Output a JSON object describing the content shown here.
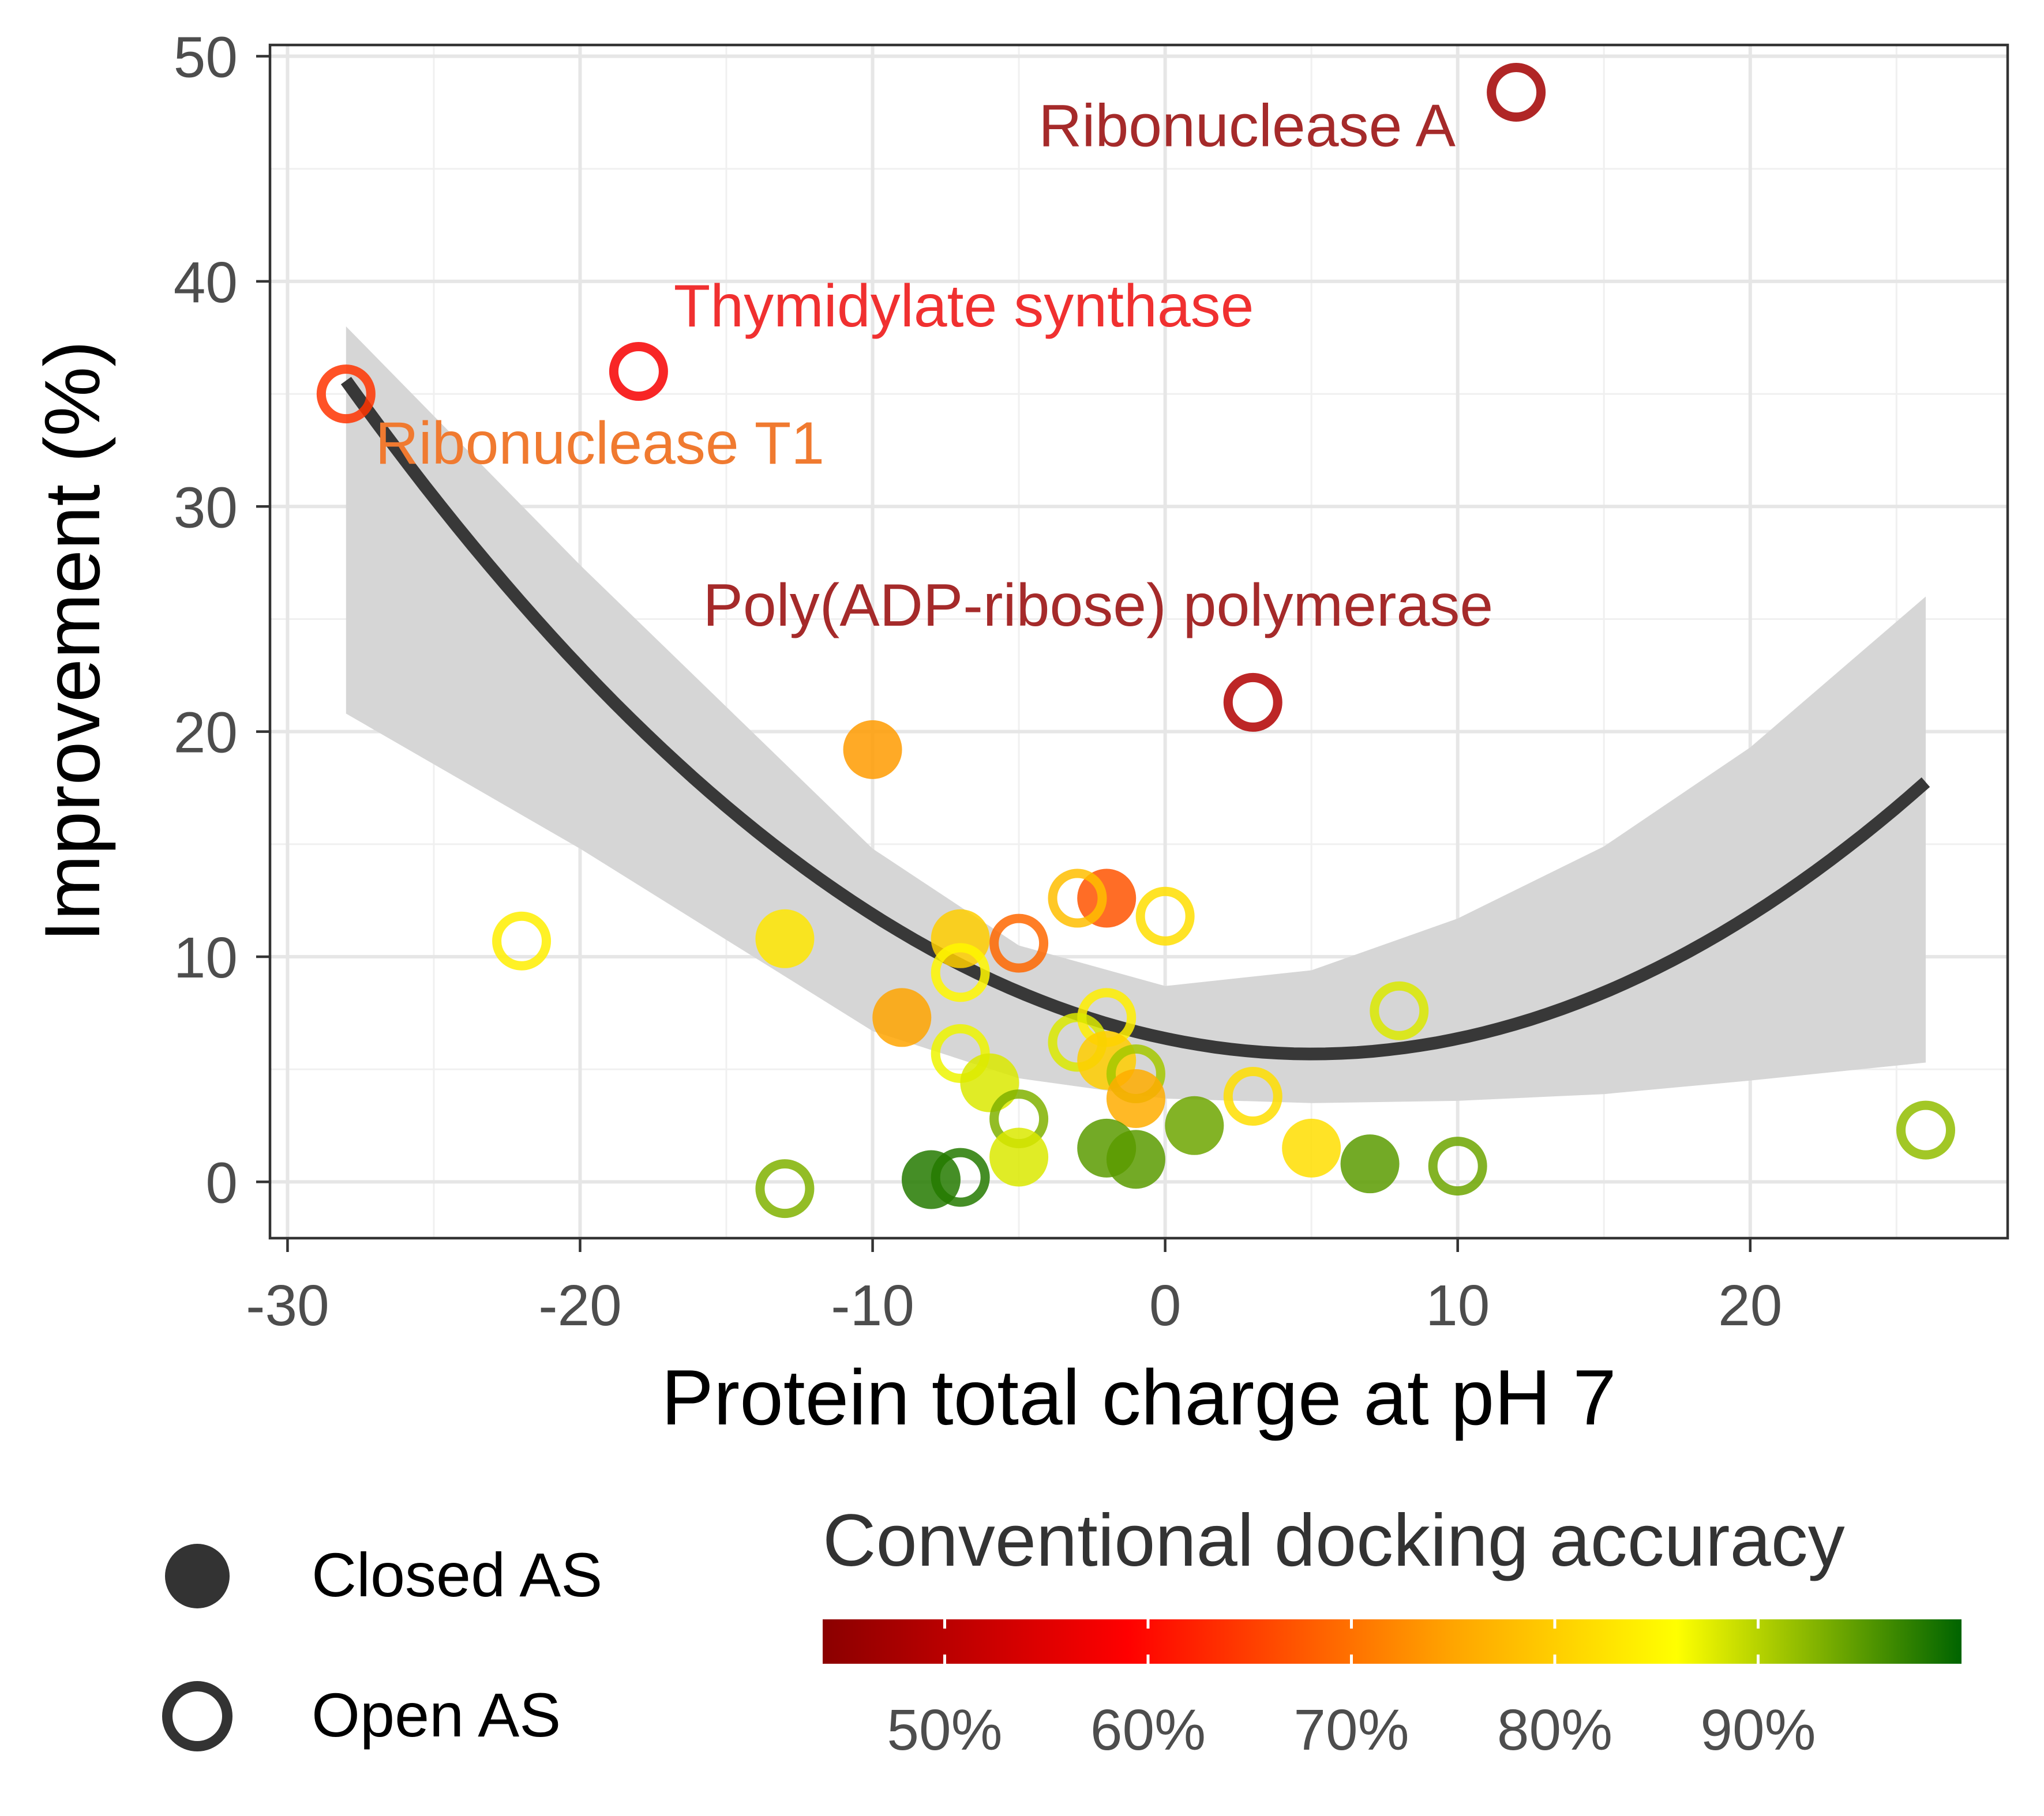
{
  "chart_data": {
    "type": "scatter",
    "xlabel": "Protein total charge at pH 7",
    "ylabel": "Improvement (%)",
    "xlim": [
      -30.6,
      28.8
    ],
    "ylim": [
      -2.5,
      50.5
    ],
    "xticks": [
      -30,
      -20,
      -10,
      0,
      10,
      20
    ],
    "yticks": [
      0,
      10,
      20,
      30,
      40,
      50
    ],
    "xtick_labels": [
      "-30",
      "-20",
      "-10",
      "0",
      "10",
      "20"
    ],
    "ytick_labels": [
      "0",
      "10",
      "20",
      "30",
      "40",
      "50"
    ],
    "grid": true,
    "points": [
      {
        "x": 12,
        "y": 48.4,
        "open": true,
        "accuracy": 47
      },
      {
        "x": -18,
        "y": 36.0,
        "open": true,
        "accuracy": 58
      },
      {
        "x": -28,
        "y": 35.0,
        "open": true,
        "accuracy": 64
      },
      {
        "x": 3,
        "y": 21.3,
        "open": true,
        "accuracy": 49
      },
      {
        "x": -10,
        "y": 19.2,
        "open": false,
        "accuracy": 74
      },
      {
        "x": -2,
        "y": 12.6,
        "open": false,
        "accuracy": 67
      },
      {
        "x": -3,
        "y": 12.6,
        "open": true,
        "accuracy": 78
      },
      {
        "x": 0,
        "y": 11.8,
        "open": true,
        "accuracy": 82
      },
      {
        "x": -22,
        "y": 10.7,
        "open": true,
        "accuracy": 84
      },
      {
        "x": -13,
        "y": 10.8,
        "open": false,
        "accuracy": 83
      },
      {
        "x": -7,
        "y": 10.8,
        "open": false,
        "accuracy": 80
      },
      {
        "x": -5,
        "y": 10.6,
        "open": true,
        "accuracy": 69
      },
      {
        "x": -7,
        "y": 9.3,
        "open": true,
        "accuracy": 85
      },
      {
        "x": -9,
        "y": 7.3,
        "open": false,
        "accuracy": 75
      },
      {
        "x": -2,
        "y": 7.3,
        "open": true,
        "accuracy": 84
      },
      {
        "x": 8,
        "y": 7.6,
        "open": true,
        "accuracy": 88
      },
      {
        "x": -3,
        "y": 6.2,
        "open": true,
        "accuracy": 88
      },
      {
        "x": -2,
        "y": 5.4,
        "open": false,
        "accuracy": 80
      },
      {
        "x": -7,
        "y": 5.7,
        "open": true,
        "accuracy": 87
      },
      {
        "x": -6,
        "y": 4.4,
        "open": false,
        "accuracy": 88
      },
      {
        "x": -1,
        "y": 4.8,
        "open": true,
        "accuracy": 91
      },
      {
        "x": -1,
        "y": 3.7,
        "open": false,
        "accuracy": 76
      },
      {
        "x": 3,
        "y": 3.8,
        "open": true,
        "accuracy": 82
      },
      {
        "x": -5,
        "y": 2.8,
        "open": true,
        "accuracy": 93
      },
      {
        "x": 1,
        "y": 2.5,
        "open": false,
        "accuracy": 94
      },
      {
        "x": 5,
        "y": 1.5,
        "open": false,
        "accuracy": 82
      },
      {
        "x": -5,
        "y": 1.1,
        "open": false,
        "accuracy": 88
      },
      {
        "x": -2,
        "y": 1.5,
        "open": false,
        "accuracy": 95
      },
      {
        "x": -1,
        "y": 1.0,
        "open": false,
        "accuracy": 95
      },
      {
        "x": 7,
        "y": 0.8,
        "open": false,
        "accuracy": 95
      },
      {
        "x": 10,
        "y": 0.7,
        "open": true,
        "accuracy": 94
      },
      {
        "x": 26,
        "y": 2.3,
        "open": true,
        "accuracy": 92
      },
      {
        "x": -13,
        "y": -0.3,
        "open": true,
        "accuracy": 93
      },
      {
        "x": -8,
        "y": 0.1,
        "open": false,
        "accuracy": 98
      },
      {
        "x": -7,
        "y": 0.2,
        "open": true,
        "accuracy": 98
      }
    ],
    "annotations": [
      {
        "text": "Ribonuclease A",
        "x": 2.8,
        "y": 46.0,
        "color": "#a52a2a",
        "anchor": "middle"
      },
      {
        "text": "Thymidylate synthase",
        "x": -16.8,
        "y": 38.0,
        "color": "#f03030",
        "anchor": "start"
      },
      {
        "text": "Ribonuclease T1",
        "x": -27.0,
        "y": 31.9,
        "color": "#f07a30",
        "anchor": "start"
      },
      {
        "text": "Poly(ADP-ribose) polymerase",
        "x": -15.8,
        "y": 24.7,
        "color": "#a52a2a",
        "anchor": "start"
      }
    ],
    "fit_curve": {
      "x_range": [
        -28,
        26
      ],
      "coefficients": [
        6.374,
        -0.2755,
        0.02743
      ],
      "band_upper": [
        [
          -28,
          38.0
        ],
        [
          -20,
          27.4
        ],
        [
          -10,
          14.8
        ],
        [
          -5,
          10.5
        ],
        [
          0,
          8.7
        ],
        [
          5,
          9.4
        ],
        [
          10,
          11.7
        ],
        [
          15,
          14.9
        ],
        [
          20,
          19.3
        ],
        [
          26,
          26.0
        ]
      ],
      "band_lower": [
        [
          -28,
          20.8
        ],
        [
          -20,
          14.8
        ],
        [
          -10,
          6.7
        ],
        [
          -5,
          4.6
        ],
        [
          0,
          3.7
        ],
        [
          5,
          3.5
        ],
        [
          10,
          3.6
        ],
        [
          15,
          3.9
        ],
        [
          20,
          4.5
        ],
        [
          26,
          5.3
        ]
      ],
      "line_color": "#383838",
      "band_color": "#d6d6d6"
    },
    "colorbar": {
      "title": "Conventional docking accuracy",
      "range": [
        44,
        100
      ],
      "stops": [
        {
          "value": 44,
          "color": "#8b0000"
        },
        {
          "value": 59,
          "color": "#ff0000"
        },
        {
          "value": 75,
          "color": "#ffa500"
        },
        {
          "value": 86,
          "color": "#ffff00"
        },
        {
          "value": 100,
          "color": "#006400"
        }
      ],
      "ticks": [
        50,
        60,
        70,
        80,
        90
      ],
      "tick_labels": [
        "50%",
        "60%",
        "70%",
        "80%",
        "90%"
      ]
    },
    "shape_legend": [
      {
        "label": "Closed AS",
        "open": false
      },
      {
        "label": "Open AS",
        "open": true
      }
    ]
  }
}
